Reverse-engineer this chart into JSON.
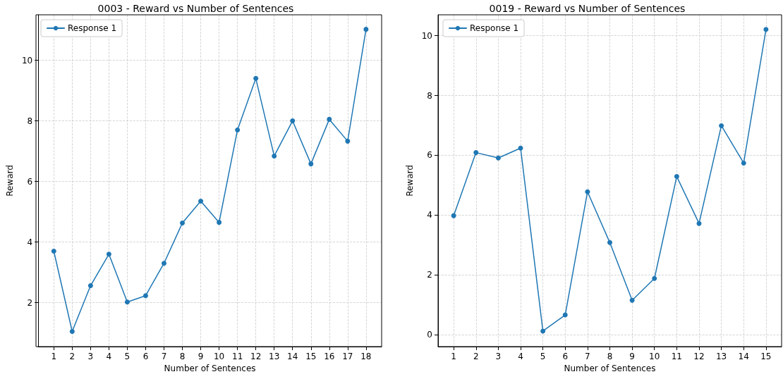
{
  "chart_data": [
    {
      "type": "line",
      "title": "0003 - Reward vs Number of Sentences",
      "xlabel": "Number of Sentences",
      "ylabel": "Reward",
      "x": [
        1,
        2,
        3,
        4,
        5,
        6,
        7,
        8,
        9,
        10,
        11,
        12,
        13,
        14,
        15,
        16,
        17,
        18
      ],
      "series": [
        {
          "name": "Response 1",
          "color": "#1f77b4",
          "values": [
            3.7,
            1.05,
            2.56,
            3.6,
            2.02,
            2.23,
            3.3,
            4.63,
            5.35,
            4.65,
            7.7,
            9.4,
            6.84,
            8.0,
            6.58,
            8.05,
            7.33,
            11.02
          ]
        }
      ],
      "xlim": [
        0.15,
        18.85
      ],
      "xticks": [
        1,
        2,
        3,
        4,
        5,
        6,
        7,
        8,
        9,
        10,
        11,
        12,
        13,
        14,
        15,
        16,
        17,
        18
      ],
      "ylim": [
        0.55,
        11.5
      ],
      "yticks": [
        2,
        4,
        6,
        8,
        10
      ],
      "grid": true,
      "legend": "top left",
      "marker": "circle",
      "line_style": "solid"
    },
    {
      "type": "line",
      "title": "0019 - Reward vs Number of Sentences",
      "xlabel": "Number of Sentences",
      "ylabel": "Reward",
      "x": [
        1,
        2,
        3,
        4,
        5,
        6,
        7,
        8,
        9,
        10,
        11,
        12,
        13,
        14,
        15
      ],
      "series": [
        {
          "name": "Response 1",
          "color": "#1f77b4",
          "values": [
            3.98,
            6.09,
            5.91,
            6.24,
            0.12,
            0.66,
            4.78,
            3.08,
            1.15,
            1.88,
            5.29,
            3.72,
            6.99,
            5.74,
            10.21
          ]
        }
      ],
      "xlim": [
        0.3,
        15.7
      ],
      "xticks": [
        1,
        2,
        3,
        4,
        5,
        6,
        7,
        8,
        9,
        10,
        11,
        12,
        13,
        14,
        15
      ],
      "ylim": [
        -0.4,
        10.7
      ],
      "yticks": [
        0,
        2,
        4,
        6,
        8,
        10
      ],
      "grid": true,
      "legend": "top left",
      "marker": "circle",
      "line_style": "solid"
    }
  ]
}
